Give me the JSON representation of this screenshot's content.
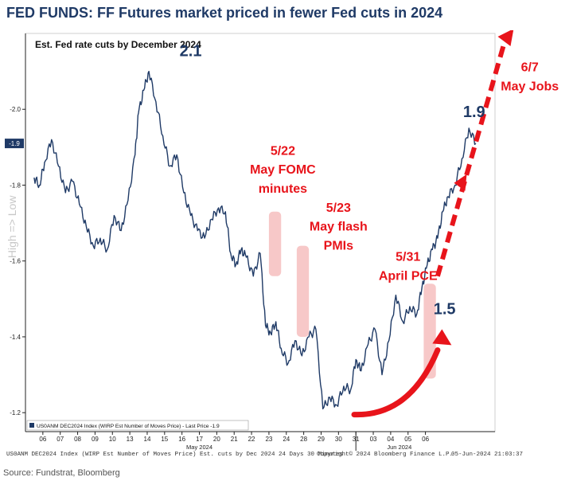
{
  "title": "FED FUNDS: FF Futures market priced in fewer Fed cuts in 2024",
  "source": "Source: Fundstrat, Bloomberg",
  "footer": {
    "left": "US0ANM DEC2024 Index (WIRP Est Number of Moves Price) Est. cuts by Dec 2024 24 Days 30 Minutes",
    "right": "Copyright© 2024 Bloomberg Finance L.P.",
    "stamp": "05-Jun-2024 21:03:37"
  },
  "colors": {
    "line": "#1f3a66",
    "accent": "#e8141b",
    "highlight": "#f4b6b6",
    "title": "#1f3a66"
  },
  "chart_data": {
    "type": "line",
    "title": "Est. Fed rate cuts by December 2024",
    "ylabel": "High => Low",
    "y_axis_inverted": true,
    "ylim": [
      -2.2,
      -1.15
    ],
    "yticks": [
      -2.0,
      -1.8,
      -1.6,
      -1.4,
      -1.2
    ],
    "ytick_labels": [
      "-2.0",
      "-1.8",
      "-1.6",
      "-1.4",
      "-1.2"
    ],
    "last_price_label": "-1.9",
    "xtick_labels": [
      "06",
      "07",
      "08",
      "09",
      "10",
      "13",
      "14",
      "15",
      "16",
      "17",
      "20",
      "21",
      "22",
      "23",
      "24",
      "28",
      "29",
      "30",
      "31",
      "03",
      "04",
      "05",
      "06"
    ],
    "month_labels": [
      "May 2024",
      "Jun 2024"
    ],
    "legend": "US0ANM DEC2024 Index (WIRP Est Number of Moves Price) - Last Price -1.9",
    "series": [
      {
        "name": "US0ANM DEC2024 Index",
        "x": [
          0,
          0.3,
          0.6,
          1,
          1.4,
          1.8,
          2.2,
          2.6,
          3,
          3.4,
          3.8,
          4.2,
          4.6,
          5,
          5.4,
          5.8,
          6,
          6.3,
          6.6,
          7,
          7.4,
          7.8,
          8.2,
          8.6,
          9,
          9.4,
          9.8,
          10.2,
          10.6,
          11,
          11.3,
          11.6,
          11.9,
          12.2,
          12.6,
          13,
          13.3,
          13.6,
          13.9,
          14.2,
          14.6,
          15,
          15.4,
          15.8,
          16.2,
          16.6,
          17,
          17.4,
          17.8,
          18.2,
          18.5,
          18.8,
          19.2,
          19.6,
          20,
          20.4,
          20.8,
          21.2,
          21.6,
          22,
          22.3,
          22.6,
          22.9,
          23.2,
          23.5,
          23.8,
          24.2,
          24.6,
          25,
          25.4
        ],
        "values": [
          -1.82,
          -1.8,
          -1.86,
          -1.92,
          -1.85,
          -1.78,
          -1.81,
          -1.75,
          -1.69,
          -1.64,
          -1.66,
          -1.63,
          -1.72,
          -1.68,
          -1.76,
          -1.88,
          -1.99,
          -2.05,
          -2.1,
          -2.02,
          -1.93,
          -1.85,
          -1.88,
          -1.78,
          -1.72,
          -1.68,
          -1.66,
          -1.71,
          -1.74,
          -1.73,
          -1.62,
          -1.59,
          -1.63,
          -1.61,
          -1.56,
          -1.62,
          -1.43,
          -1.41,
          -1.44,
          -1.37,
          -1.33,
          -1.39,
          -1.35,
          -1.4,
          -1.42,
          -1.21,
          -1.24,
          -1.22,
          -1.27,
          -1.26,
          -1.34,
          -1.31,
          -1.38,
          -1.42,
          -1.3,
          -1.39,
          -1.51,
          -1.44,
          -1.48,
          -1.46,
          -1.53,
          -1.59,
          -1.63,
          -1.66,
          -1.73,
          -1.77,
          -1.8,
          -1.87,
          -1.95,
          -1.91
        ]
      }
    ],
    "highlights": [
      {
        "x0": 13.5,
        "x1": 14.2,
        "y0": -1.73,
        "y1": -1.56
      },
      {
        "x0": 15.1,
        "x1": 15.8,
        "y0": -1.64,
        "y1": -1.4
      },
      {
        "x0": 22.4,
        "x1": 23.1,
        "y0": -1.54,
        "y1": -1.29
      }
    ],
    "annotations": [
      {
        "text": "2.1",
        "color": "#1f3a66",
        "x": 9.0,
        "y": -2.14
      },
      {
        "text": "1.9",
        "color": "#1f3a66",
        "x": 25.3,
        "y": -1.98
      },
      {
        "text": "1.5",
        "color": "#1f3a66",
        "x": 23.6,
        "y": -1.46
      },
      {
        "text": "5/22",
        "color": "#e8141b",
        "x": 14.3,
        "y": -1.88
      },
      {
        "text": "May FOMC",
        "color": "#e8141b",
        "x": 14.3,
        "y": -1.83
      },
      {
        "text": "minutes",
        "color": "#e8141b",
        "x": 14.3,
        "y": -1.78
      },
      {
        "text": "5/23",
        "color": "#e8141b",
        "x": 17.5,
        "y": -1.73
      },
      {
        "text": "May flash",
        "color": "#e8141b",
        "x": 17.5,
        "y": -1.68
      },
      {
        "text": "PMIs",
        "color": "#e8141b",
        "x": 17.5,
        "y": -1.63
      },
      {
        "text": "5/31",
        "color": "#e8141b",
        "x": 21.5,
        "y": -1.6
      },
      {
        "text": "April PCE",
        "color": "#e8141b",
        "x": 21.5,
        "y": -1.55
      },
      {
        "text": "6/7",
        "color": "#e8141b",
        "x": 28.5,
        "y": -2.1
      },
      {
        "text": "May Jobs",
        "color": "#e8141b",
        "x": 28.5,
        "y": -2.05
      }
    ]
  }
}
